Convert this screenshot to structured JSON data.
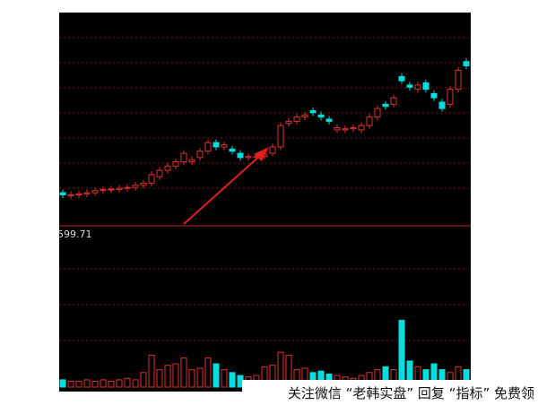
{
  "chart_data": {
    "type": "candlestick",
    "up_color": "#e03030",
    "down_color": "#00dede",
    "ylim": [
      0,
      100
    ],
    "open": [
      15.5,
      14,
      14.5,
      15,
      15.5,
      16.5,
      16.8,
      17,
      17.6,
      18,
      19,
      20,
      23,
      26,
      28,
      30,
      30,
      32,
      35,
      39,
      37,
      36,
      34,
      32,
      32,
      32.5,
      34,
      37,
      48,
      49,
      51,
      54,
      52,
      50,
      45,
      45,
      45.5,
      45,
      47,
      51,
      57,
      57,
      70,
      66,
      64,
      67,
      62,
      58,
      57,
      64,
      77
    ],
    "close": [
      14.5,
      14.5,
      15,
      15.5,
      16.5,
      17,
      17.2,
      17.6,
      18,
      19,
      20,
      24,
      26,
      28,
      30,
      34,
      31,
      35,
      39,
      37,
      38,
      35,
      32,
      32.5,
      32.5,
      33.5,
      37,
      47,
      49,
      51,
      52,
      53,
      51,
      49,
      46,
      45.5,
      46,
      47,
      51,
      55,
      56,
      60,
      68,
      65,
      66,
      64,
      60,
      55,
      64,
      73,
      75
    ],
    "high": [
      17,
      16,
      16.5,
      17,
      18,
      18.5,
      18.7,
      19.1,
      19.5,
      20.5,
      21.5,
      25.5,
      27.5,
      29.5,
      31.5,
      35.5,
      32.5,
      36.5,
      40.5,
      40.5,
      39.5,
      37.5,
      35.5,
      34,
      34,
      35,
      38.5,
      48.5,
      50.5,
      52.5,
      53.5,
      55.5,
      53.5,
      51.5,
      47.5,
      47,
      47.5,
      48.5,
      52.5,
      56.5,
      58.5,
      61.5,
      71.5,
      67.5,
      67.5,
      68.5,
      63.5,
      59.5,
      65.5,
      74.5,
      78.5
    ],
    "low": [
      13,
      12.5,
      13,
      13.5,
      14,
      15,
      15.3,
      15.5,
      16.1,
      16.5,
      17.5,
      18.5,
      21.5,
      24.5,
      26.5,
      28.5,
      28.5,
      30.5,
      33.5,
      35.5,
      35.5,
      33.5,
      30.5,
      30.5,
      30.5,
      31,
      32.5,
      35.5,
      46.5,
      47.5,
      49.5,
      51.5,
      49.5,
      47.5,
      43.5,
      43.5,
      44,
      43.5,
      45.5,
      49.5,
      54.5,
      55.5,
      66.5,
      63.5,
      62.5,
      62.5,
      58.5,
      53.5,
      55.5,
      62.5,
      73.5
    ],
    "volume_label": "599.71",
    "volume_ylim": [
      0,
      100
    ],
    "volume": [
      5,
      4,
      4,
      5,
      4,
      5,
      4,
      5,
      6,
      5,
      10,
      22,
      12,
      15,
      16,
      20,
      12,
      13,
      20,
      16,
      12,
      10,
      8,
      7,
      8,
      14,
      15,
      24,
      22,
      12,
      13,
      10,
      11,
      9,
      8,
      7,
      6,
      8,
      10,
      12,
      14,
      12,
      46,
      18,
      14,
      12,
      16,
      12,
      10,
      14,
      12
    ]
  },
  "watermark": "关注微信 “老韩实盘” 回复 “指标” 免费领"
}
